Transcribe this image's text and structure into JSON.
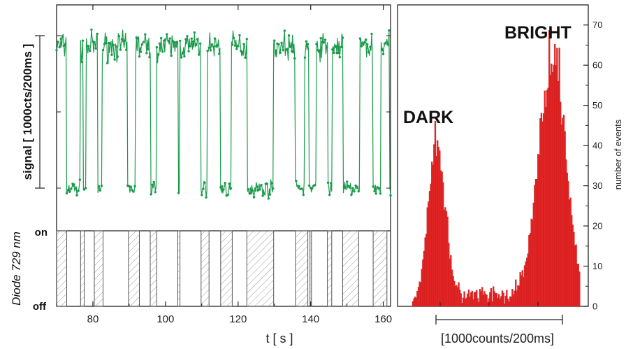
{
  "colors": {
    "trace": "#1b9a4b",
    "histogram": "#e32626",
    "histogram_edge": "#c41414",
    "pulse_hatch": "#9a9a9a",
    "axis": "#222222"
  },
  "chart_data": [
    {
      "type": "line",
      "panel": "time-trace",
      "xlabel": "t  [ s ]",
      "ylabel_signal": "signal  [ 1000cts/200ms ]",
      "ylabel_diode": "Diode 729 nm",
      "diode_states": [
        "on",
        "off"
      ],
      "xlim": [
        70,
        162
      ],
      "ylim": [
        0,
        20
      ],
      "x_ticks": [
        "80",
        "100",
        "120",
        "140",
        "160"
      ],
      "x_tick_values": [
        80,
        100,
        120,
        140,
        160
      ],
      "levels": {
        "bright": 17.0,
        "dark": 2.2
      },
      "bright_intervals": [
        [
          70,
          72.8
        ],
        [
          76.6,
          77.4
        ],
        [
          78.2,
          81.4
        ],
        [
          82.6,
          89.6
        ],
        [
          91.8,
          96
        ],
        [
          97.6,
          103.6
        ],
        [
          104,
          109.8
        ],
        [
          111.6,
          115.2
        ],
        [
          118.2,
          122.6
        ],
        [
          129.8,
          135.8
        ],
        [
          138.4,
          139.6
        ],
        [
          141.6,
          144.6
        ],
        [
          145.8,
          148.8
        ],
        [
          153.4,
          157
        ],
        [
          159.2,
          161.6
        ]
      ],
      "diode_pulses": [
        [
          70,
          72.8
        ],
        [
          76.6,
          77.6
        ],
        [
          80.4,
          82.8
        ],
        [
          89.8,
          92.8
        ],
        [
          95.8,
          97.6
        ],
        [
          103.4,
          104
        ],
        [
          109.8,
          112
        ],
        [
          115.2,
          118.4
        ],
        [
          122.4,
          129.8
        ],
        [
          135.8,
          139.2
        ],
        [
          139.8,
          140.2
        ],
        [
          144.6,
          145.8
        ],
        [
          148.8,
          153.2
        ],
        [
          157.2,
          161
        ]
      ]
    },
    {
      "type": "histogram",
      "panel": "count-histogram",
      "xlabel": "[1000counts/200ms]",
      "ylabel": "number of events",
      "ylim": [
        0,
        75
      ],
      "y_ticks": [
        "0",
        "10",
        "20",
        "30",
        "40",
        "50",
        "60",
        "70"
      ],
      "y_tick_values": [
        0,
        10,
        20,
        30,
        40,
        50,
        60,
        70
      ],
      "annotations": [
        "DARK",
        "BRIGHT"
      ],
      "peaks": [
        {
          "name": "DARK",
          "center_bin": 21,
          "height": 42,
          "width_bins": 7.5
        },
        {
          "name": "BRIGHT",
          "center_bin": 125,
          "height": 64,
          "width_bins": 12
        }
      ],
      "background_level": 2.5,
      "n_bins": 150
    }
  ]
}
